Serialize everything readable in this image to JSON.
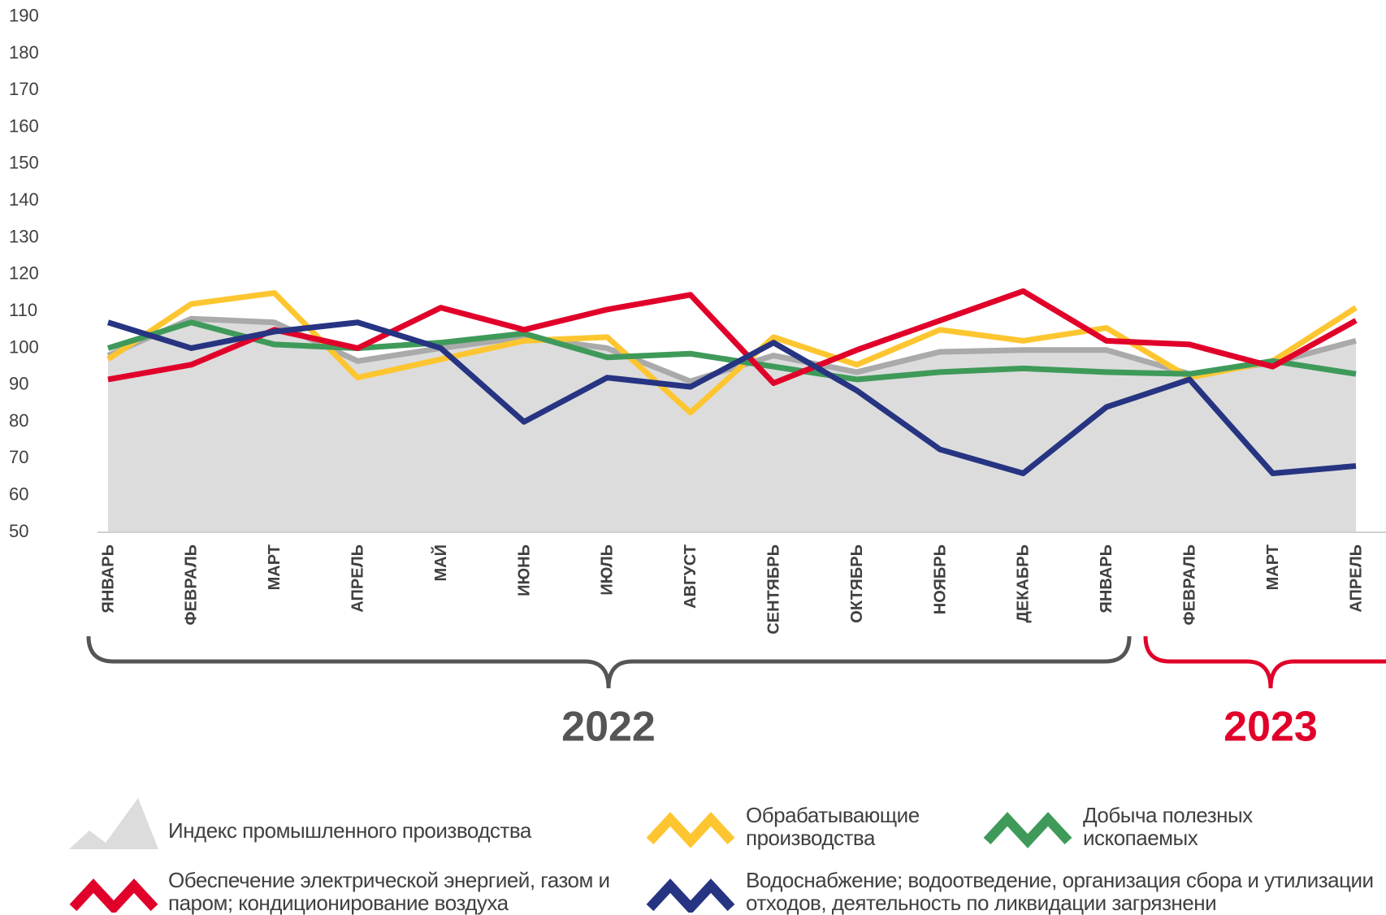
{
  "chart_data": {
    "type": "line",
    "categories": [
      "ЯНВАРЬ",
      "ФЕВРАЛЬ",
      "МАРТ",
      "АПРЕЛЬ",
      "МАЙ",
      "ИЮНЬ",
      "ИЮЛЬ",
      "АВГУСТ",
      "СЕНТЯБРЬ",
      "ОКТЯБРЬ",
      "НОЯБРЬ",
      "ДЕКАБРЬ",
      "ЯНВАРЬ",
      "ФЕВРАЛЬ",
      "МАРТ",
      "АПРЕЛЬ"
    ],
    "annotations": [
      "2022",
      "2023"
    ],
    "ylim": [
      50,
      190
    ],
    "yticks": [
      50,
      60,
      70,
      80,
      90,
      100,
      110,
      120,
      130,
      140,
      150,
      160,
      170,
      180,
      190
    ],
    "series": [
      {
        "name": "Индекс промышленного производства",
        "color": "#aaaaaa",
        "area": true,
        "area_color": "#dcdcdc",
        "values": [
          98,
          108,
          107,
          96.5,
          100,
          103,
          100,
          91,
          98,
          93.5,
          99,
          99.5,
          99.5,
          93,
          96,
          102
        ]
      },
      {
        "name": "Обрабатывающие производства",
        "color": "#fdc631",
        "values": [
          97,
          112,
          115,
          92,
          97,
          102,
          103,
          82.5,
          103,
          95.5,
          105,
          102,
          105.5,
          92,
          96.5,
          111
        ]
      },
      {
        "name": "Добыча полезных ископаемых",
        "color": "#3f9a5a",
        "values": [
          100,
          107,
          101,
          100,
          101.5,
          104,
          97.5,
          98.5,
          95,
          91.5,
          93.5,
          94.5,
          93.5,
          93,
          96.5,
          93
        ]
      },
      {
        "name": "Обеспечение электрической энергией, газом и паром; кондиционирование воздуха",
        "color": "#e0002a",
        "values": [
          91.5,
          95.5,
          105,
          100,
          111,
          105,
          110.5,
          114.5,
          90.5,
          99.5,
          107.5,
          115.5,
          102,
          101,
          95,
          107.5
        ]
      },
      {
        "name": "Водоснабжение; водоотведение, организация сбора и утилизации отходов, деятельность по ликвидации загрязнени",
        "color": "#263482",
        "values": [
          107,
          100,
          104.5,
          107,
          100,
          80,
          92,
          89.5,
          101.5,
          88.5,
          72.5,
          66,
          84,
          91.5,
          66,
          68
        ]
      }
    ]
  }
}
